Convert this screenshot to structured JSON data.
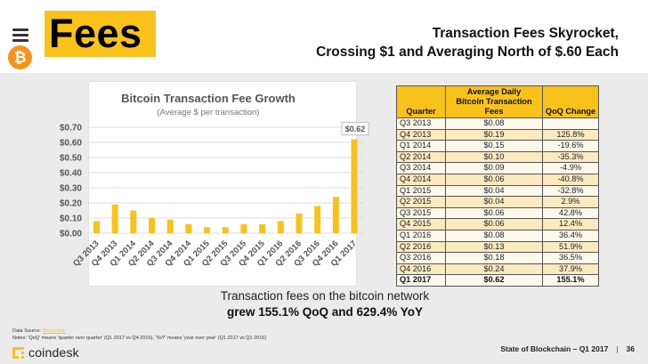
{
  "header": {
    "section_title": "Fees",
    "headline_line1": "Transaction Fees Skyrocket,",
    "headline_line2": "Crossing $1 and Averaging North of $.60 Each",
    "menu_icon": "hamburger-menu-icon",
    "bitcoin_icon": "bitcoin-logo-icon",
    "bitcoin_glyph": "₿"
  },
  "colors": {
    "accent_yellow": "#f9c21b",
    "bitcoin_orange": "#f7931a",
    "background": "#ebebeb"
  },
  "chart_data": {
    "type": "bar",
    "title": "Bitcoin Transaction Fee Growth",
    "subtitle": "(Average $ per transaction)",
    "xlabel": "",
    "ylabel": "",
    "ylim": [
      0,
      0.7
    ],
    "yticks": [
      0.0,
      0.1,
      0.2,
      0.3,
      0.4,
      0.5,
      0.6,
      0.7
    ],
    "ytick_labels": [
      "$0.00",
      "$0.10",
      "$0.20",
      "$0.30",
      "$0.40",
      "$0.50",
      "$0.60",
      "$0.70"
    ],
    "grid": true,
    "categories": [
      "Q3 2013",
      "Q4 2013",
      "Q1 2014",
      "Q2 2014",
      "Q3 2014",
      "Q4 2014",
      "Q1 2015",
      "Q2 2015",
      "Q3 2015",
      "Q4 2015",
      "Q1 2016",
      "Q2 2016",
      "Q3 2016",
      "Q4 2016",
      "Q1 2017"
    ],
    "values": [
      0.08,
      0.19,
      0.15,
      0.1,
      0.09,
      0.06,
      0.04,
      0.04,
      0.06,
      0.06,
      0.08,
      0.13,
      0.18,
      0.24,
      0.62
    ],
    "bar_color": "#f9c21b",
    "annotations": [
      {
        "category": "Q1 2017",
        "text": "$0.62"
      }
    ]
  },
  "table": {
    "headers": [
      "Quarter",
      "Average Daily Bitcoin Transaction Fees",
      "QoQ Change"
    ],
    "header_fee_line1": "Average Daily",
    "header_fee_line2": "Bitcoin Transaction Fees",
    "rows": [
      {
        "quarter": "Q3 2013",
        "fee": "$0.08",
        "qoq": ""
      },
      {
        "quarter": "Q4 2013",
        "fee": "$0.19",
        "qoq": "125.8%"
      },
      {
        "quarter": "Q1 2014",
        "fee": "$0.15",
        "qoq": "-19.6%"
      },
      {
        "quarter": "Q2 2014",
        "fee": "$0.10",
        "qoq": "-35.3%"
      },
      {
        "quarter": "Q3 2014",
        "fee": "$0.09",
        "qoq": "-4.9%"
      },
      {
        "quarter": "Q4 2014",
        "fee": "$0.06",
        "qoq": "-40.8%"
      },
      {
        "quarter": "Q1 2015",
        "fee": "$0.04",
        "qoq": "-32.8%"
      },
      {
        "quarter": "Q2 2015",
        "fee": "$0.04",
        "qoq": "2.9%"
      },
      {
        "quarter": "Q3 2015",
        "fee": "$0.06",
        "qoq": "42.8%"
      },
      {
        "quarter": "Q4 2015",
        "fee": "$0.06",
        "qoq": "12.4%"
      },
      {
        "quarter": "Q1 2016",
        "fee": "$0.08",
        "qoq": "36.4%"
      },
      {
        "quarter": "Q2 2016",
        "fee": "$0.13",
        "qoq": "51.9%"
      },
      {
        "quarter": "Q3 2016",
        "fee": "$0.18",
        "qoq": "36.5%"
      },
      {
        "quarter": "Q4 2016",
        "fee": "$0.24",
        "qoq": "37.9%"
      },
      {
        "quarter": "Q1 2017",
        "fee": "$0.62",
        "qoq": "155.1%"
      }
    ]
  },
  "summary": {
    "line1": "Transaction fees on the bitcoin network",
    "line2": "grew 155.1% QoQ and 629.4% YoY"
  },
  "footer": {
    "source_label": "Data Source: ",
    "source_link": "Blockchain",
    "notes": "Notes: 'QoQ' means 'quarter over quarter' (Q1 2017 vs Q4 2016), 'YoY' means 'year over year' (Q1 2017 vs Q1 2016)",
    "brand": "coindesk",
    "report_title": "State of Blockchain – Q1 2017",
    "separator": "|",
    "page_number": "36"
  }
}
